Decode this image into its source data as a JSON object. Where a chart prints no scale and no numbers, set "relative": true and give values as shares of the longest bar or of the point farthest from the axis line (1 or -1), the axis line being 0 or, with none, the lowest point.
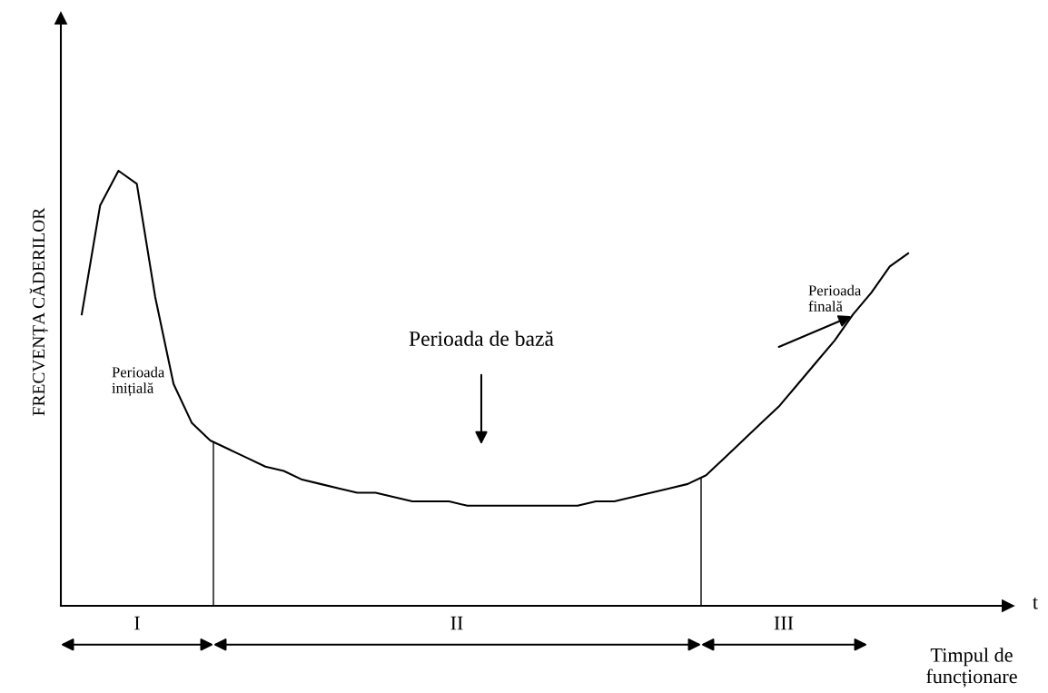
{
  "chart_data": {
    "type": "line",
    "relative": true,
    "xlabel": "Timpul de funcționare",
    "ylabel": "FRECVENȚA CĂDERILOR",
    "categories": [
      null,
      null,
      null,
      null,
      null,
      null,
      null,
      null,
      null,
      null,
      null,
      null,
      null,
      null,
      null,
      null,
      null,
      null,
      null,
      null,
      null,
      null,
      null,
      null,
      null,
      null,
      null,
      null,
      null,
      null,
      null,
      null,
      null,
      null,
      null,
      null,
      null,
      null,
      null,
      null,
      null,
      null,
      null,
      null,
      null,
      null
    ],
    "series": [
      {
        "color": "#000000",
        "values": [
          0.67,
          0.92,
          1.0,
          0.97,
          0.71,
          0.51,
          0.42,
          0.38,
          0.36,
          0.34,
          0.32,
          0.31,
          0.29,
          0.28,
          0.27,
          0.26,
          0.26,
          0.25,
          0.24,
          0.24,
          0.24,
          0.23,
          0.23,
          0.23,
          0.23,
          0.23,
          0.23,
          0.23,
          0.24,
          0.24,
          0.25,
          0.26,
          0.27,
          0.28,
          0.3,
          0.34,
          0.38,
          0.42,
          0.46,
          0.51,
          0.56,
          0.61,
          0.67,
          0.72,
          0.78,
          0.81
        ]
      }
    ],
    "annotations": [
      "Perioada inițială",
      "Perioada de bază",
      "Perioada finală",
      "t",
      "I",
      "II",
      "III"
    ],
    "marker": "none",
    "line_style": "solid",
    "tick_labels": false
  }
}
